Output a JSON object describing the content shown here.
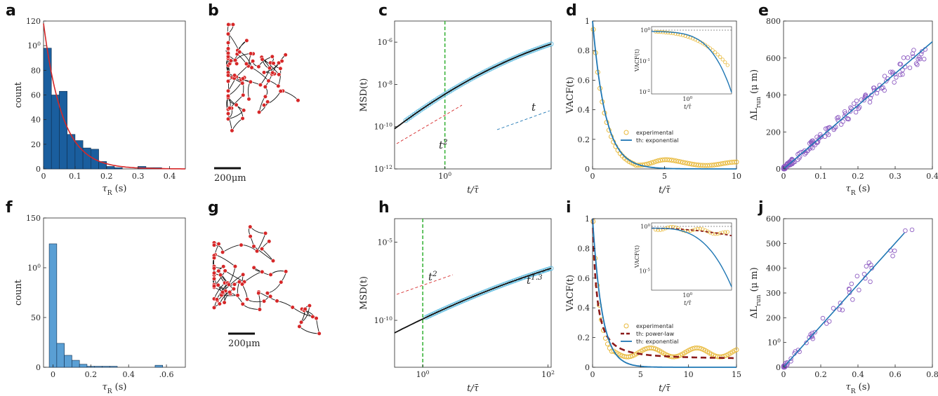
{
  "panel_labels": [
    "a",
    "b",
    "c",
    "d",
    "e",
    "f",
    "g",
    "h",
    "i",
    "j"
  ],
  "scale_bar_label": "200μm",
  "colors": {
    "bar_dark": "#1a5e9e",
    "bar_light": "#5a9fd4",
    "red": "#d62728",
    "cyan": "#6cc2e3",
    "yellow": "#e8b93a",
    "blue": "#1f77b4",
    "maroon": "#8b1a1a",
    "purple": "#8e5cc2",
    "green": "#3cb43c"
  },
  "chart_data": [
    {
      "id": "a",
      "type": "bar",
      "xlabel": "τR (s)",
      "ylabel": "count",
      "xlim": [
        0,
        0.45
      ],
      "ylim": [
        0,
        120
      ],
      "xticks": [
        "0",
        "0.1",
        "0.2",
        "0.3",
        "0.4"
      ],
      "yticks": [
        "0",
        "20",
        "40",
        "60",
        "80",
        "100",
        "120"
      ],
      "bin_width": 0.025,
      "values": [
        98,
        60,
        63,
        28,
        23,
        17,
        16,
        6,
        2,
        1,
        0,
        0,
        2,
        1,
        1,
        0,
        0,
        0
      ],
      "fit": {
        "name": "exponential",
        "a": 118,
        "tau": 0.06
      }
    },
    {
      "id": "c",
      "type": "scatter",
      "xscale": "log",
      "yscale": "log",
      "xlabel": "t/τ̄",
      "ylabel": "MSD(t)",
      "yticks": [
        "10-12",
        "10-10",
        "10-8",
        "10-6"
      ],
      "xticks": [
        "100"
      ],
      "annotations": [
        "t2",
        "t"
      ],
      "vline_x": 1
    },
    {
      "id": "d",
      "type": "line",
      "xlabel": "t/τ̄",
      "ylabel": "VACF(t)",
      "xlim": [
        0,
        10
      ],
      "ylim": [
        0,
        1
      ],
      "xticks": [
        "0",
        "5",
        "10"
      ],
      "yticks": [
        "0",
        "0.2",
        "0.4",
        "0.6",
        "0.8",
        "1"
      ],
      "legend": [
        "experimental",
        "th: exponential"
      ],
      "inset": {
        "ylabel": "VACF(t)",
        "xlabel": "t/τ̄",
        "yticks": [
          "10-2",
          "10-1",
          "100"
        ],
        "xticks": [
          "100"
        ]
      }
    },
    {
      "id": "e",
      "type": "scatter",
      "xlabel": "τR (s)",
      "ylabel": "ΔLrun (μ m)",
      "xlim": [
        0,
        0.4
      ],
      "ylim": [
        0,
        800
      ],
      "xticks": [
        "0",
        "0.1",
        "0.2",
        "0.3",
        "0.4"
      ],
      "yticks": [
        "0",
        "200",
        "400",
        "600",
        "800"
      ],
      "fit_slope": 1720
    },
    {
      "id": "f",
      "type": "bar",
      "xlabel": "τR (s)",
      "ylabel": "count",
      "xlim": [
        -0.05,
        0.7
      ],
      "ylim": [
        0,
        150
      ],
      "xticks": [
        "0",
        "0.2",
        "0.4",
        ".0.6"
      ],
      "yticks": [
        "0",
        "50",
        "100",
        "150"
      ],
      "bin_width": 0.04,
      "values": [
        124,
        24,
        12,
        7,
        3,
        1,
        1,
        1,
        1,
        0,
        0,
        0,
        0,
        0,
        2,
        0
      ]
    },
    {
      "id": "h",
      "type": "scatter",
      "xscale": "log",
      "yscale": "log",
      "xlabel": "t/τ̄",
      "ylabel": "MSD(t)",
      "yticks": [
        "10-10",
        "10-5"
      ],
      "xticks": [
        "100",
        "102"
      ],
      "annotations": [
        "t2",
        "t1.3"
      ],
      "vline_x": 1
    },
    {
      "id": "i",
      "type": "line",
      "xlabel": "t/τ̄",
      "ylabel": "VACF(t)",
      "xlim": [
        0,
        15
      ],
      "ylim": [
        0,
        1
      ],
      "xticks": [
        "0",
        "5",
        "10",
        "15"
      ],
      "yticks": [
        "0",
        "0.2",
        "0.4",
        "0.6",
        "0.8",
        "1"
      ],
      "legend": [
        "experimental",
        "th: power-law",
        "th: exponential"
      ],
      "inset": {
        "ylabel": "VACF(t)",
        "xlabel": "t/τ̄",
        "yticks": [
          "10-5",
          "100"
        ],
        "xticks": [
          "100"
        ]
      }
    },
    {
      "id": "j",
      "type": "scatter",
      "xlabel": "τR (s)",
      "ylabel": "ΔLrun (μ m)",
      "xlim": [
        0,
        0.8
      ],
      "ylim": [
        0,
        600
      ],
      "xticks": [
        "0",
        "0.2",
        "0.4",
        "0.6",
        "0.8"
      ],
      "yticks": [
        "0",
        "100",
        "200",
        "300",
        "400",
        "500",
        "600"
      ],
      "fit_slope": 835
    }
  ]
}
